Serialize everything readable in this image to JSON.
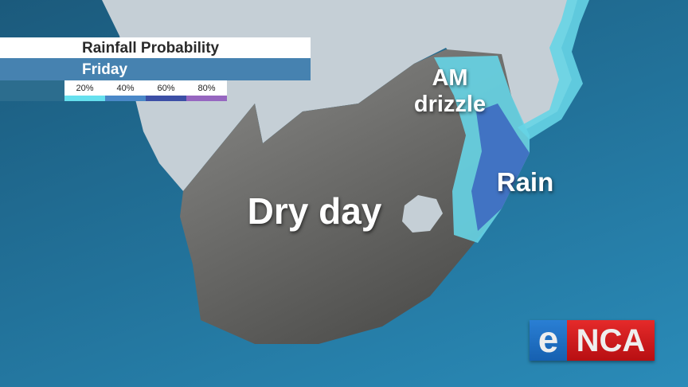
{
  "legend": {
    "title": "Rainfall Probability",
    "day": "Friday",
    "scale": [
      {
        "label": "20%",
        "color": "#66e0ee"
      },
      {
        "label": "40%",
        "color": "#4a88c8"
      },
      {
        "label": "60%",
        "color": "#3c4fa6"
      },
      {
        "label": "80%",
        "color": "#9666c0"
      }
    ]
  },
  "map_labels": {
    "dry": "Dry day",
    "drizzle_line1": "AM",
    "drizzle_line2": "drizzle",
    "rain": "Rain"
  },
  "logo": {
    "e": "e",
    "rest": "NCA",
    "text": "eNCA"
  }
}
